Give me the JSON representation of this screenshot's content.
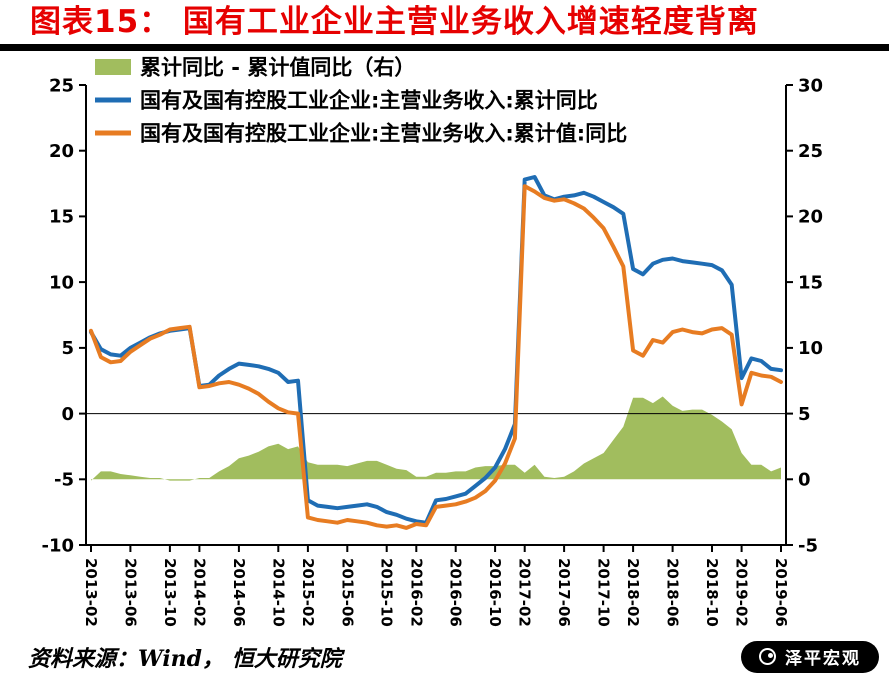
{
  "title": "图表15： 国有工业企业主营业务收入增速轻度背离",
  "footer": {
    "source": "资料来源：Wind， 恒大研究院",
    "watermark": "泽平宏观"
  },
  "colors": {
    "title_red": "#e60000",
    "blue_line": "#1f6db4",
    "orange_line": "#e77c22",
    "green_area": "#a1bd5e",
    "axis": "#000000",
    "watermark_bg": "#000000",
    "watermark_text": "#ffffff"
  },
  "chart_data": {
    "type": "line",
    "title": "国有工业企业主营业务收入增速轻度背离",
    "legend_position": "top-left",
    "grid": false,
    "x": [
      "2013-02",
      "2013-03",
      "2013-04",
      "2013-05",
      "2013-06",
      "2013-07",
      "2013-08",
      "2013-09",
      "2013-10",
      "2013-11",
      "2013-12",
      "2014-02",
      "2014-03",
      "2014-04",
      "2014-05",
      "2014-06",
      "2014-07",
      "2014-08",
      "2014-09",
      "2014-10",
      "2014-11",
      "2014-12",
      "2015-02",
      "2015-03",
      "2015-04",
      "2015-05",
      "2015-06",
      "2015-07",
      "2015-08",
      "2015-09",
      "2015-10",
      "2015-11",
      "2015-12",
      "2016-02",
      "2016-03",
      "2016-04",
      "2016-05",
      "2016-06",
      "2016-07",
      "2016-08",
      "2016-09",
      "2016-10",
      "2016-11",
      "2016-12",
      "2017-02",
      "2017-03",
      "2017-04",
      "2017-05",
      "2017-06",
      "2017-07",
      "2017-08",
      "2017-09",
      "2017-10",
      "2017-11",
      "2017-12",
      "2018-02",
      "2018-03",
      "2018-04",
      "2018-05",
      "2018-06",
      "2018-07",
      "2018-08",
      "2018-09",
      "2018-10",
      "2018-11",
      "2018-12",
      "2019-02",
      "2019-03",
      "2019-04",
      "2019-05",
      "2019-06"
    ],
    "x_ticks": [
      "2013-02",
      "2013-06",
      "2013-10",
      "2014-02",
      "2014-06",
      "2014-10",
      "2015-02",
      "2015-06",
      "2015-10",
      "2016-02",
      "2016-06",
      "2016-10",
      "2017-02",
      "2017-06",
      "2017-10",
      "2018-02",
      "2018-06",
      "2018-10",
      "2019-02",
      "2019-06"
    ],
    "left_axis": {
      "min": -10,
      "max": 25,
      "ticks": [
        25,
        20,
        15,
        10,
        5,
        0,
        -5,
        -10
      ]
    },
    "right_axis": {
      "min": -5,
      "max": 30,
      "ticks": [
        30,
        25,
        20,
        15,
        10,
        5,
        0,
        -5
      ]
    },
    "series": [
      {
        "name": "累计同比 - 累计值同比（右）",
        "type": "area",
        "axis": "right",
        "color": "#a1bd5e",
        "values": [
          -0.1,
          0.6,
          0.6,
          0.4,
          0.3,
          0.2,
          0.1,
          0.1,
          -0.1,
          -0.1,
          -0.1,
          0.1,
          0.1,
          0.6,
          1.0,
          1.6,
          1.8,
          2.1,
          2.5,
          2.7,
          2.3,
          2.5,
          1.3,
          1.1,
          1.1,
          1.1,
          1.0,
          1.2,
          1.4,
          1.4,
          1.1,
          0.8,
          0.7,
          0.2,
          0.2,
          0.5,
          0.5,
          0.6,
          0.6,
          0.9,
          1.0,
          1.0,
          1.1,
          1.1,
          0.5,
          1.1,
          0.2,
          0.1,
          0.2,
          0.6,
          1.2,
          1.6,
          2.0,
          3.0,
          4.0,
          6.2,
          6.2,
          5.8,
          6.3,
          5.6,
          5.2,
          5.3,
          5.3,
          4.9,
          4.4,
          3.8,
          2.0,
          1.1,
          1.1,
          0.6,
          0.9
        ]
      },
      {
        "name": "国有及国有控股工业企业:主营业务收入:累计同比",
        "type": "line",
        "axis": "left",
        "color": "#1f6db4",
        "values": [
          6.2,
          4.9,
          4.5,
          4.4,
          5.0,
          5.4,
          5.8,
          6.1,
          6.3,
          6.4,
          6.5,
          2.1,
          2.2,
          2.9,
          3.4,
          3.8,
          3.7,
          3.6,
          3.4,
          3.1,
          2.4,
          2.5,
          -6.6,
          -7.0,
          -7.1,
          -7.2,
          -7.1,
          -7.0,
          -6.9,
          -7.1,
          -7.5,
          -7.7,
          -8.0,
          -8.2,
          -8.3,
          -6.6,
          -6.5,
          -6.3,
          -6.1,
          -5.5,
          -4.9,
          -4.1,
          -2.7,
          -0.8,
          17.8,
          18.0,
          16.6,
          16.3,
          16.5,
          16.6,
          16.8,
          16.5,
          16.1,
          15.7,
          15.2,
          11.0,
          10.6,
          11.4,
          11.7,
          11.8,
          11.6,
          11.5,
          11.4,
          11.3,
          10.9,
          9.8,
          2.7,
          4.2,
          4.0,
          3.4,
          3.3
        ]
      },
      {
        "name": "国有及国有控股工业企业:主营业务收入:累计值:同比",
        "type": "line",
        "axis": "left",
        "color": "#e77c22",
        "values": [
          6.3,
          4.3,
          3.9,
          4.0,
          4.7,
          5.2,
          5.7,
          6.0,
          6.4,
          6.5,
          6.6,
          2.0,
          2.1,
          2.3,
          2.4,
          2.2,
          1.9,
          1.5,
          0.9,
          0.4,
          0.1,
          0.0,
          -7.9,
          -8.1,
          -8.2,
          -8.3,
          -8.1,
          -8.2,
          -8.3,
          -8.5,
          -8.6,
          -8.5,
          -8.7,
          -8.4,
          -8.5,
          -7.1,
          -7.0,
          -6.9,
          -6.7,
          -6.4,
          -5.9,
          -5.1,
          -3.8,
          -1.9,
          17.3,
          16.9,
          16.4,
          16.2,
          16.3,
          16.0,
          15.6,
          14.9,
          14.1,
          12.7,
          11.2,
          4.8,
          4.4,
          5.6,
          5.4,
          6.2,
          6.4,
          6.2,
          6.1,
          6.4,
          6.5,
          6.0,
          0.7,
          3.1,
          2.9,
          2.8,
          2.4
        ]
      }
    ]
  }
}
